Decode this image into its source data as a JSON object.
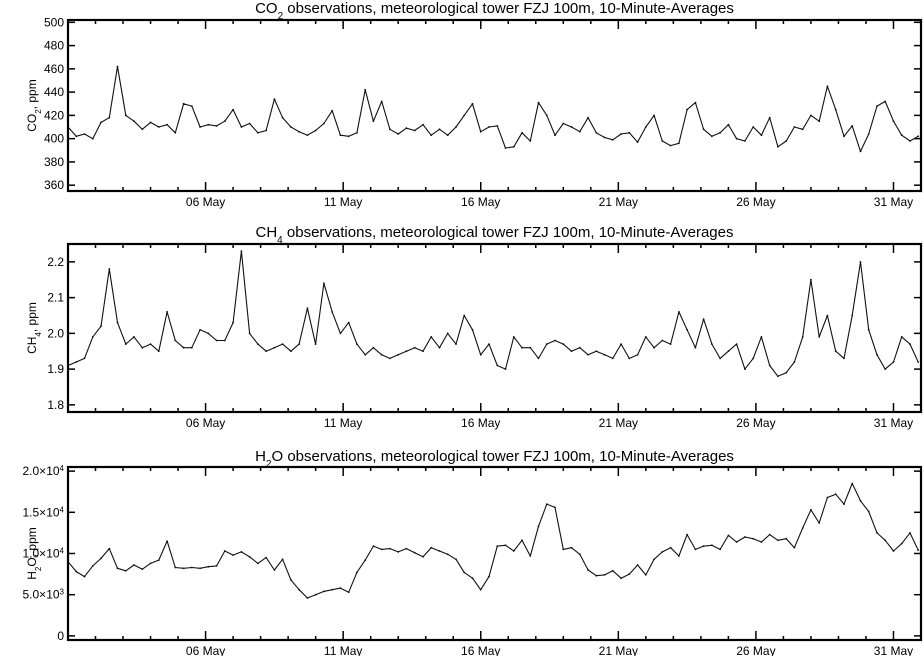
{
  "chart_data": [
    {
      "type": "line",
      "title_parts": [
        "CO",
        "2",
        " observations, meteorological tower FZJ 100m, 10-Minute-Averages"
      ],
      "ylabel_parts": [
        "CO",
        "2",
        ", ppm"
      ],
      "xlim": [
        1,
        32
      ],
      "ylim": [
        355,
        502
      ],
      "y_ticks": [
        360,
        380,
        400,
        420,
        440,
        460,
        480,
        500
      ],
      "y_tick_labels": [
        "360",
        "380",
        "400",
        "420",
        "440",
        "460",
        "480",
        "500"
      ],
      "x_ticks": [
        6,
        11,
        16,
        21,
        26,
        31
      ],
      "x_tick_labels": [
        "06 May",
        "11 May",
        "16 May",
        "21 May",
        "26 May",
        "31 May"
      ],
      "color": "#111111",
      "series": [
        {
          "x": [
            1.0,
            1.3,
            1.6,
            1.9,
            2.2,
            2.5,
            2.8,
            3.1,
            3.4,
            3.7,
            4.0,
            4.3,
            4.6,
            4.9,
            5.2,
            5.5,
            5.8,
            6.1,
            6.4,
            6.7,
            7.0,
            7.3,
            7.6,
            7.9,
            8.2,
            8.5,
            8.8,
            9.1,
            9.4,
            9.7,
            10.0,
            10.3,
            10.6,
            10.9,
            11.2,
            11.5,
            11.8,
            12.1,
            12.4,
            12.7,
            13.0,
            13.3,
            13.6,
            13.9,
            14.2,
            14.5,
            14.8,
            15.1,
            15.4,
            15.7,
            16.0,
            16.3,
            16.6,
            16.9,
            17.2,
            17.5,
            17.8,
            18.1,
            18.4,
            18.7,
            19.0,
            19.3,
            19.6,
            19.9,
            20.2,
            20.5,
            20.8,
            21.1,
            21.4,
            21.7,
            22.0,
            22.3,
            22.6,
            22.9,
            23.2,
            23.5,
            23.8,
            24.1,
            24.4,
            24.7,
            25.0,
            25.3,
            25.6,
            25.9,
            26.2,
            26.5,
            26.8,
            27.1,
            27.4,
            27.7,
            28.0,
            28.3,
            28.6,
            28.9,
            29.2,
            29.5,
            29.8,
            30.1,
            30.4,
            30.7,
            31.0,
            31.3,
            31.6,
            31.9
          ],
          "y": [
            410,
            402,
            404,
            400,
            414,
            418,
            462,
            420,
            415,
            408,
            414,
            410,
            412,
            405,
            430,
            428,
            410,
            412,
            411,
            415,
            425,
            410,
            413,
            405,
            407,
            434,
            418,
            410,
            406,
            403,
            407,
            413,
            424,
            403,
            402,
            405,
            442,
            415,
            432,
            408,
            404,
            409,
            407,
            412,
            403,
            408,
            403,
            410,
            420,
            430,
            406,
            410,
            411,
            392,
            393,
            405,
            398,
            431,
            420,
            403,
            413,
            410,
            406,
            418,
            405,
            401,
            399,
            404,
            405,
            397,
            410,
            420,
            398,
            394,
            396,
            425,
            431,
            408,
            402,
            405,
            412,
            400,
            398,
            410,
            403,
            418,
            393,
            398,
            410,
            408,
            420,
            415,
            445,
            425,
            402,
            411,
            389,
            404,
            428,
            432,
            415,
            403,
            398,
            402
          ]
        }
      ]
    },
    {
      "type": "line",
      "title_parts": [
        "CH",
        "4",
        " observations, meteorological tower FZJ 100m, 10-Minute-Averages"
      ],
      "ylabel_parts": [
        "CH",
        "4",
        ", ppm"
      ],
      "xlim": [
        1,
        32
      ],
      "ylim": [
        1.78,
        2.25
      ],
      "y_ticks": [
        1.8,
        1.9,
        2.0,
        2.1,
        2.2
      ],
      "y_tick_labels": [
        "1.8",
        "1.9",
        "2.0",
        "2.1",
        "2.2"
      ],
      "x_ticks": [
        6,
        11,
        16,
        21,
        26,
        31
      ],
      "x_tick_labels": [
        "06 May",
        "11 May",
        "16 May",
        "21 May",
        "26 May",
        "31 May"
      ],
      "color": "#111111",
      "series": [
        {
          "x": [
            1.0,
            1.3,
            1.6,
            1.9,
            2.2,
            2.5,
            2.8,
            3.1,
            3.4,
            3.7,
            4.0,
            4.3,
            4.6,
            4.9,
            5.2,
            5.5,
            5.8,
            6.1,
            6.4,
            6.7,
            7.0,
            7.3,
            7.6,
            7.9,
            8.2,
            8.5,
            8.8,
            9.1,
            9.4,
            9.7,
            10.0,
            10.3,
            10.6,
            10.9,
            11.2,
            11.5,
            11.8,
            12.1,
            12.4,
            12.7,
            13.0,
            13.3,
            13.6,
            13.9,
            14.2,
            14.5,
            14.8,
            15.1,
            15.4,
            15.7,
            16.0,
            16.3,
            16.6,
            16.9,
            17.2,
            17.5,
            17.8,
            18.1,
            18.4,
            18.7,
            19.0,
            19.3,
            19.6,
            19.9,
            20.2,
            20.5,
            20.8,
            21.1,
            21.4,
            21.7,
            22.0,
            22.3,
            22.6,
            22.9,
            23.2,
            23.5,
            23.8,
            24.1,
            24.4,
            24.7,
            25.0,
            25.3,
            25.6,
            25.9,
            26.2,
            26.5,
            26.8,
            27.1,
            27.4,
            27.7,
            28.0,
            28.3,
            28.6,
            28.9,
            29.2,
            29.5,
            29.8,
            30.1,
            30.4,
            30.7,
            31.0,
            31.3,
            31.6,
            31.9
          ],
          "y": [
            1.91,
            1.92,
            1.93,
            1.99,
            2.02,
            2.18,
            2.03,
            1.97,
            1.99,
            1.96,
            1.97,
            1.95,
            2.06,
            1.98,
            1.96,
            1.96,
            2.01,
            2.0,
            1.98,
            1.98,
            2.03,
            2.23,
            2.0,
            1.97,
            1.95,
            1.96,
            1.97,
            1.95,
            1.97,
            2.07,
            1.97,
            2.14,
            2.06,
            2.0,
            2.03,
            1.97,
            1.94,
            1.96,
            1.94,
            1.93,
            1.94,
            1.95,
            1.96,
            1.95,
            1.99,
            1.96,
            2.0,
            1.97,
            2.05,
            2.01,
            1.94,
            1.97,
            1.91,
            1.9,
            1.99,
            1.96,
            1.96,
            1.93,
            1.97,
            1.98,
            1.97,
            1.95,
            1.96,
            1.94,
            1.95,
            1.94,
            1.93,
            1.97,
            1.93,
            1.94,
            1.99,
            1.96,
            1.98,
            1.97,
            2.06,
            2.01,
            1.96,
            2.04,
            1.97,
            1.93,
            1.95,
            1.97,
            1.9,
            1.93,
            1.99,
            1.91,
            1.88,
            1.89,
            1.92,
            1.99,
            2.15,
            1.99,
            2.05,
            1.95,
            1.93,
            2.05,
            2.2,
            2.01,
            1.94,
            1.9,
            1.92,
            1.99,
            1.97,
            1.92
          ]
        }
      ]
    },
    {
      "type": "line",
      "title_parts": [
        "H",
        "2",
        "O observations, meteorological tower FZJ 100m, 10-Minute-Averages"
      ],
      "ylabel_parts": [
        "H",
        "2",
        "O, ppm"
      ],
      "xlim": [
        1,
        32
      ],
      "ylim": [
        -500,
        20500
      ],
      "y_ticks": [
        0,
        5000,
        10000,
        15000,
        20000
      ],
      "y_tick_labels": [
        [
          "0",
          ""
        ],
        [
          "5.0×10",
          "3"
        ],
        [
          "1.0×10",
          "4"
        ],
        [
          "1.5×10",
          "4"
        ],
        [
          "2.0×10",
          "4"
        ]
      ],
      "x_ticks": [
        6,
        11,
        16,
        21,
        26,
        31
      ],
      "x_tick_labels": [
        "06 May",
        "11 May",
        "16 May",
        "21 May",
        "26 May",
        "31 May"
      ],
      "color": "#111111",
      "series": [
        {
          "x": [
            1.0,
            1.3,
            1.6,
            1.9,
            2.2,
            2.5,
            2.8,
            3.1,
            3.4,
            3.7,
            4.0,
            4.3,
            4.6,
            4.9,
            5.2,
            5.5,
            5.8,
            6.1,
            6.4,
            6.7,
            7.0,
            7.3,
            7.6,
            7.9,
            8.2,
            8.5,
            8.8,
            9.1,
            9.4,
            9.7,
            10.0,
            10.3,
            10.6,
            10.9,
            11.2,
            11.5,
            11.8,
            12.1,
            12.4,
            12.7,
            13.0,
            13.3,
            13.6,
            13.9,
            14.2,
            14.5,
            14.8,
            15.1,
            15.4,
            15.7,
            16.0,
            16.3,
            16.6,
            16.9,
            17.2,
            17.5,
            17.8,
            18.1,
            18.4,
            18.7,
            19.0,
            19.3,
            19.6,
            19.9,
            20.2,
            20.5,
            20.8,
            21.1,
            21.4,
            21.7,
            22.0,
            22.3,
            22.6,
            22.9,
            23.2,
            23.5,
            23.8,
            24.1,
            24.4,
            24.7,
            25.0,
            25.3,
            25.6,
            25.9,
            26.2,
            26.5,
            26.8,
            27.1,
            27.4,
            27.7,
            28.0,
            28.3,
            28.6,
            28.9,
            29.2,
            29.5,
            29.8,
            30.1,
            30.4,
            30.7,
            31.0,
            31.3,
            31.6,
            31.9
          ],
          "y": [
            9000,
            7800,
            7200,
            8500,
            9400,
            10600,
            8200,
            7900,
            8600,
            8100,
            8800,
            9200,
            11500,
            8300,
            8200,
            8300,
            8200,
            8400,
            8500,
            10300,
            9800,
            10200,
            9600,
            8800,
            9500,
            8000,
            9300,
            6800,
            5600,
            4600,
            5000,
            5400,
            5600,
            5800,
            5300,
            7700,
            9200,
            10900,
            10500,
            10600,
            10200,
            10600,
            10100,
            9600,
            10700,
            10300,
            9900,
            9300,
            7700,
            7000,
            5600,
            7200,
            10900,
            11000,
            10300,
            11600,
            9700,
            13300,
            16000,
            15600,
            10500,
            10700,
            9900,
            8000,
            7300,
            7400,
            7900,
            7000,
            7500,
            8600,
            7400,
            9300,
            10200,
            10700,
            9700,
            12300,
            10500,
            10900,
            11000,
            10500,
            12200,
            11400,
            12000,
            11800,
            11400,
            12300,
            11600,
            11800,
            10700,
            13100,
            15300,
            13700,
            16800,
            17200,
            16000,
            18500,
            16400,
            15100,
            12500,
            11600,
            10300,
            11200,
            12500,
            10400
          ]
        }
      ]
    }
  ]
}
